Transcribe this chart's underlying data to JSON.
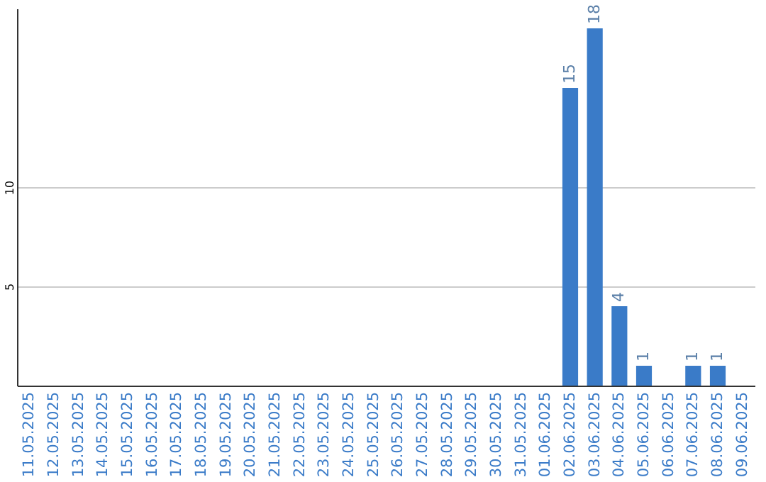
{
  "chart_data": {
    "type": "bar",
    "categories": [
      "11.05.2025",
      "12.05.2025",
      "13.05.2025",
      "14.05.2025",
      "15.05.2025",
      "16.05.2025",
      "17.05.2025",
      "18.05.2025",
      "19.05.2025",
      "20.05.2025",
      "21.05.2025",
      "22.05.2025",
      "23.05.2025",
      "24.05.2025",
      "25.05.2025",
      "26.05.2025",
      "27.05.2025",
      "28.05.2025",
      "29.05.2025",
      "30.05.2025",
      "31.05.2025",
      "01.06.2025",
      "02.06.2025",
      "03.06.2025",
      "04.06.2025",
      "05.06.2025",
      "06.06.2025",
      "07.06.2025",
      "08.06.2025",
      "09.06.2025"
    ],
    "values": [
      0,
      0,
      0,
      0,
      0,
      0,
      0,
      0,
      0,
      0,
      0,
      0,
      0,
      0,
      0,
      0,
      0,
      0,
      0,
      0,
      0,
      0,
      15,
      18,
      4,
      1,
      0,
      1,
      1,
      0
    ],
    "value_labels": [
      null,
      null,
      null,
      null,
      null,
      null,
      null,
      null,
      null,
      null,
      null,
      null,
      null,
      null,
      null,
      null,
      null,
      null,
      null,
      null,
      null,
      null,
      "15",
      "18",
      "4",
      "1",
      null,
      "1",
      "1",
      null
    ],
    "color": "#3a7bc8",
    "ylim": [
      0,
      19
    ],
    "yticks": [
      5,
      10
    ],
    "grid": "y"
  }
}
